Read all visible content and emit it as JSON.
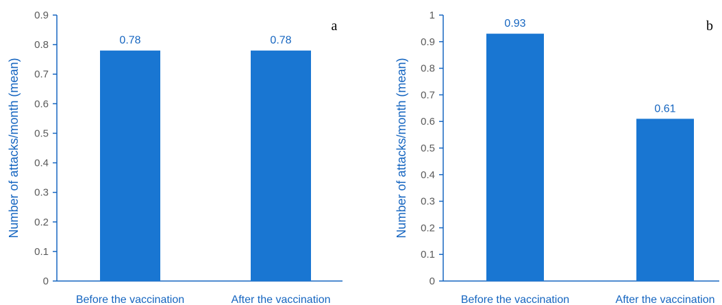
{
  "chart_data": [
    {
      "type": "bar",
      "panel_label": "a",
      "categories": [
        "Before the vaccination",
        "After the vaccination"
      ],
      "values": [
        0.78,
        0.78
      ],
      "value_labels": [
        "0.78",
        "0.78"
      ],
      "ylabel": "Number of attacks/month (mean)",
      "ylim": [
        0,
        0.9
      ],
      "yticks": [
        "0",
        "0.1",
        "0.2",
        "0.3",
        "0.4",
        "0.5",
        "0.6",
        "0.7",
        "0.8",
        "0.9"
      ],
      "grid": false,
      "bar_color": "#1976d2"
    },
    {
      "type": "bar",
      "panel_label": "b",
      "categories": [
        "Before the vaccination",
        "After the vaccination"
      ],
      "values": [
        0.93,
        0.61
      ],
      "value_labels": [
        "0.93",
        "0.61"
      ],
      "ylabel": "Number of attacks/month (mean)",
      "ylim": [
        0,
        1
      ],
      "yticks": [
        "0",
        "0.1",
        "0.2",
        "0.3",
        "0.4",
        "0.5",
        "0.6",
        "0.7",
        "0.8",
        "0.9",
        "1"
      ],
      "grid": false,
      "bar_color": "#1976d2"
    }
  ]
}
